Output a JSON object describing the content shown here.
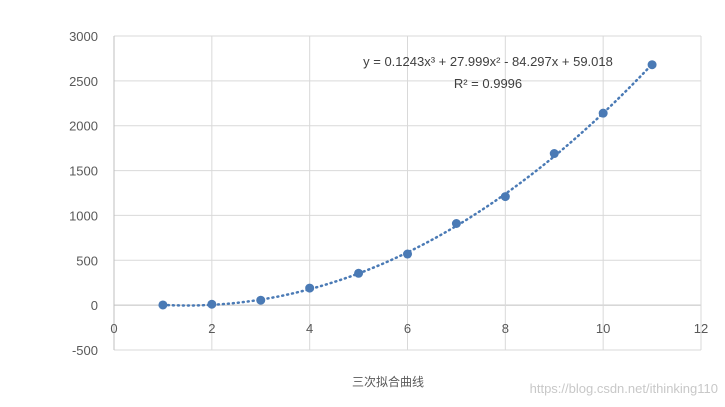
{
  "chart_data": {
    "type": "scatter",
    "title": "",
    "caption": "三次拟合曲线",
    "xlabel": "",
    "ylabel": "",
    "xlim": [
      0,
      12
    ],
    "ylim": [
      -500,
      3000
    ],
    "x_ticks": [
      "0",
      "2",
      "4",
      "6",
      "8",
      "10",
      "12"
    ],
    "y_ticks": [
      "-500",
      "0",
      "500",
      "1000",
      "1500",
      "2000",
      "2500",
      "3000"
    ],
    "grid": true,
    "legend": "none",
    "point_color": "#4a7ab5",
    "trendline": {
      "type": "polynomial",
      "order": 3,
      "style": "dotted",
      "color": "#4a7ab5",
      "coefficients": [
        0.1243,
        27.999,
        -84.297,
        59.018
      ],
      "equation": "y = 0.1243x³ + 27.999x² - 84.297x + 59.018",
      "r_squared": "R² = 0.9996"
    },
    "series": [
      {
        "x": [
          1,
          2,
          3,
          4,
          5,
          6,
          7,
          8,
          9,
          10,
          11
        ],
        "y": [
          2,
          10,
          55,
          190,
          355,
          570,
          910,
          1210,
          1690,
          2140,
          2680
        ]
      }
    ]
  },
  "watermark": "https://blog.csdn.net/ithinking110"
}
